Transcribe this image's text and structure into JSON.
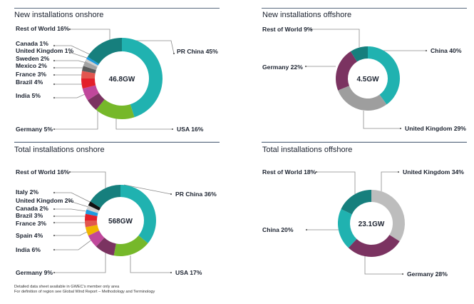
{
  "chart_data": [
    {
      "type": "pie",
      "title": "New installations onshore",
      "center_label": "46.8GW",
      "slices": [
        {
          "label": "PR China 45%",
          "name": "PR China",
          "value": 45,
          "color": "#20b2b0"
        },
        {
          "label": "USA 16%",
          "name": "USA",
          "value": 16,
          "color": "#76b82a"
        },
        {
          "label": "Germany 5%",
          "name": "Germany",
          "value": 5,
          "color": "#7b3361"
        },
        {
          "label": "India 5%",
          "name": "India",
          "value": 5,
          "color": "#c0479b"
        },
        {
          "label": "Brazil 4%",
          "name": "Brazil",
          "value": 4,
          "color": "#e3202a"
        },
        {
          "label": "France 3%",
          "name": "France",
          "value": 3,
          "color": "#e2564f"
        },
        {
          "label": "Mexico 2%",
          "name": "Mexico",
          "value": 2,
          "color": "#5a5a5a"
        },
        {
          "label": "Sweden 2%",
          "name": "Sweden",
          "value": 2,
          "color": "#a3a3a3"
        },
        {
          "label": "United Kingdom 1%",
          "name": "United Kingdom",
          "value": 1,
          "color": "#cfcfcf"
        },
        {
          "label": "Canada 1%",
          "name": "Canada",
          "value": 1,
          "color": "#1e9be0"
        },
        {
          "label": "Rest of World 16%",
          "name": "Rest of World",
          "value": 16,
          "color": "#167f7d"
        }
      ]
    },
    {
      "type": "pie",
      "title": "New installations offshore",
      "center_label": "4.5GW",
      "slices": [
        {
          "label": "China 40%",
          "name": "China",
          "value": 40,
          "color": "#20b2b0"
        },
        {
          "label": "United Kingdom 29%",
          "name": "United Kingdom",
          "value": 29,
          "color": "#9e9e9e"
        },
        {
          "label": "Germany 22%",
          "name": "Germany",
          "value": 22,
          "color": "#7b3361"
        },
        {
          "label": "Rest of World 9%",
          "name": "Rest of World",
          "value": 9,
          "color": "#167f7d"
        }
      ]
    },
    {
      "type": "pie",
      "title": "Total installations onshore",
      "center_label": "568GW",
      "slices": [
        {
          "label": "PR China 36%",
          "name": "PR China",
          "value": 36,
          "color": "#20b2b0"
        },
        {
          "label": "USA 17%",
          "name": "USA",
          "value": 17,
          "color": "#76b82a"
        },
        {
          "label": "Germany 9%",
          "name": "Germany",
          "value": 9,
          "color": "#7b3361"
        },
        {
          "label": "India 6%",
          "name": "India",
          "value": 6,
          "color": "#c0479b"
        },
        {
          "label": "Spain 4%",
          "name": "Spain",
          "value": 4,
          "color": "#f0b400"
        },
        {
          "label": "France 3%",
          "name": "France",
          "value": 3,
          "color": "#e2564f"
        },
        {
          "label": "Brazil 3%",
          "name": "Brazil",
          "value": 3,
          "color": "#e3202a"
        },
        {
          "label": "Canada 2%",
          "name": "Canada",
          "value": 2,
          "color": "#1e9be0"
        },
        {
          "label": "United Kingdom 2%",
          "name": "United Kingdom",
          "value": 2,
          "color": "#cfcfcf"
        },
        {
          "label": "Italy 2%",
          "name": "Italy",
          "value": 2,
          "color": "#111111"
        },
        {
          "label": "Rest of World 16%",
          "name": "Rest of World",
          "value": 16,
          "color": "#167f7d"
        }
      ]
    },
    {
      "type": "pie",
      "title": "Total installations offshore",
      "center_label": "23.1GW",
      "slices": [
        {
          "label": "United Kingdom 34%",
          "name": "United Kingdom",
          "value": 34,
          "color": "#bdbdbd"
        },
        {
          "label": "Germany 28%",
          "name": "Germany",
          "value": 28,
          "color": "#7b3361"
        },
        {
          "label": "China 20%",
          "name": "China",
          "value": 20,
          "color": "#20b2b0"
        },
        {
          "label": "Rest of World 18%",
          "name": "Rest of World",
          "value": 18,
          "color": "#167f7d"
        }
      ]
    }
  ],
  "footnotes": [
    "Detailed data sheet available in GWEC's member only area",
    "For definition of region see Global Wind Report – Methodology and Terminology"
  ],
  "colors": {
    "rule": "#5b6b80",
    "text": "#1c2330",
    "leader": "#8a8a8a"
  }
}
